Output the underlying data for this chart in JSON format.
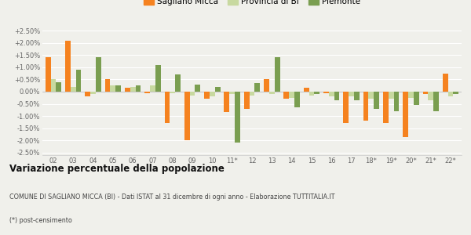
{
  "years": [
    "02",
    "03",
    "04",
    "05",
    "06",
    "07",
    "08",
    "09",
    "10",
    "11*",
    "12",
    "13",
    "14",
    "15",
    "16",
    "17",
    "18*",
    "19*",
    "20*",
    "21*",
    "22*"
  ],
  "sagliano": [
    1.4,
    2.1,
    -0.2,
    0.5,
    0.15,
    -0.05,
    -1.3,
    -2.0,
    -0.3,
    -0.85,
    -0.7,
    0.5,
    -0.3,
    0.15,
    -0.05,
    -1.3,
    -1.2,
    -1.3,
    -1.85,
    -0.1,
    0.75
  ],
  "provincia": [
    0.5,
    0.2,
    -0.1,
    0.25,
    0.2,
    0.25,
    -0.05,
    -0.15,
    -0.2,
    -0.1,
    -0.15,
    -0.1,
    -0.25,
    -0.15,
    -0.2,
    -0.2,
    -0.3,
    -0.3,
    -0.25,
    -0.35,
    -0.2
  ],
  "piemonte": [
    0.4,
    0.9,
    1.4,
    0.25,
    0.25,
    1.1,
    0.7,
    0.3,
    0.2,
    -2.1,
    0.35,
    1.4,
    -0.65,
    -0.1,
    -0.35,
    -0.35,
    -0.7,
    -0.8,
    -0.55,
    -0.8,
    -0.1
  ],
  "color_sagliano": "#f5821f",
  "color_provincia": "#c8d9a0",
  "color_piemonte": "#7a9e50",
  "title": "Variazione percentuale della popolazione",
  "subtitle": "COMUNE DI SAGLIANO MICCA (BI) - Dati ISTAT al 31 dicembre di ogni anno - Elaborazione TUTTITALIA.IT",
  "footnote": "(*) post-censimento",
  "legend_sagliano": "Sagliano Micca",
  "legend_provincia": "Provincia di BI",
  "legend_piemonte": "Piemonte",
  "ylim": [
    -2.6,
    2.6
  ],
  "yticks": [
    -2.5,
    -2.0,
    -1.5,
    -1.0,
    -0.5,
    0.0,
    0.5,
    1.0,
    1.5,
    2.0,
    2.5
  ],
  "background_color": "#f0f0eb",
  "plot_bg": "#f0f0eb"
}
